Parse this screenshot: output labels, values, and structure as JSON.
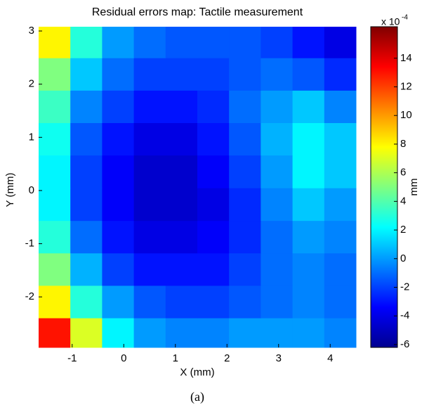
{
  "chart_data": {
    "type": "heatmap",
    "title": "Residual errors map: Tactile measurement",
    "xlabel": "X (mm)",
    "ylabel": "Y (mm)",
    "caption": "(a)",
    "xlim": [
      -1.65,
      4.5
    ],
    "ylim": [
      -2.95,
      3.08
    ],
    "xticks": [
      -1,
      0,
      1,
      2,
      3,
      4
    ],
    "yticks": [
      -2,
      -1,
      0,
      1,
      2,
      3
    ],
    "x": [
      -1.34,
      -0.73,
      -0.11,
      0.5,
      1.12,
      1.73,
      2.35,
      2.96,
      3.58,
      4.19
    ],
    "y": [
      -2.7,
      -2.09,
      -1.48,
      -0.87,
      -0.26,
      0.36,
      0.97,
      1.58,
      2.19,
      2.8
    ],
    "z": [
      [
        13,
        7,
        2,
        0,
        -0.5,
        -0.5,
        0,
        0,
        0,
        -0.5
      ],
      [
        8,
        3,
        0,
        -1.5,
        -2,
        -2,
        -1.5,
        -1,
        -0.5,
        -1
      ],
      [
        5,
        0.5,
        -2,
        -3,
        -3,
        -3,
        -2,
        -1,
        -0.5,
        -1
      ],
      [
        3,
        -1,
        -3,
        -4,
        -4,
        -3.5,
        -2.5,
        -1,
        0,
        -0.5
      ],
      [
        2,
        -2,
        -3.5,
        -4.5,
        -4.5,
        -4,
        -2.5,
        -0.5,
        1,
        0
      ],
      [
        2,
        -2,
        -3.5,
        -4.5,
        -4.5,
        -3.5,
        -2,
        0,
        2,
        1
      ],
      [
        2.5,
        -1.5,
        -3,
        -4,
        -4,
        -3,
        -1.5,
        0.5,
        2,
        1
      ],
      [
        3.5,
        -0.5,
        -2,
        -3,
        -3,
        -2.5,
        -1,
        0,
        1,
        -0.5
      ],
      [
        5,
        1,
        -1,
        -2,
        -2,
        -2,
        -1.5,
        -1,
        -1.5,
        -2.5
      ],
      [
        8,
        3,
        0,
        -1,
        -1.5,
        -1.5,
        -1.5,
        -2,
        -3,
        -4
      ]
    ],
    "colormap": "jet",
    "clim": [
      -6.2,
      16.2
    ],
    "cticks": [
      -6,
      -4,
      -2,
      0,
      2,
      4,
      6,
      8,
      10,
      12,
      14
    ],
    "clabel": "mm",
    "cmultiplier": "x 10",
    "cexponent": "-4"
  }
}
